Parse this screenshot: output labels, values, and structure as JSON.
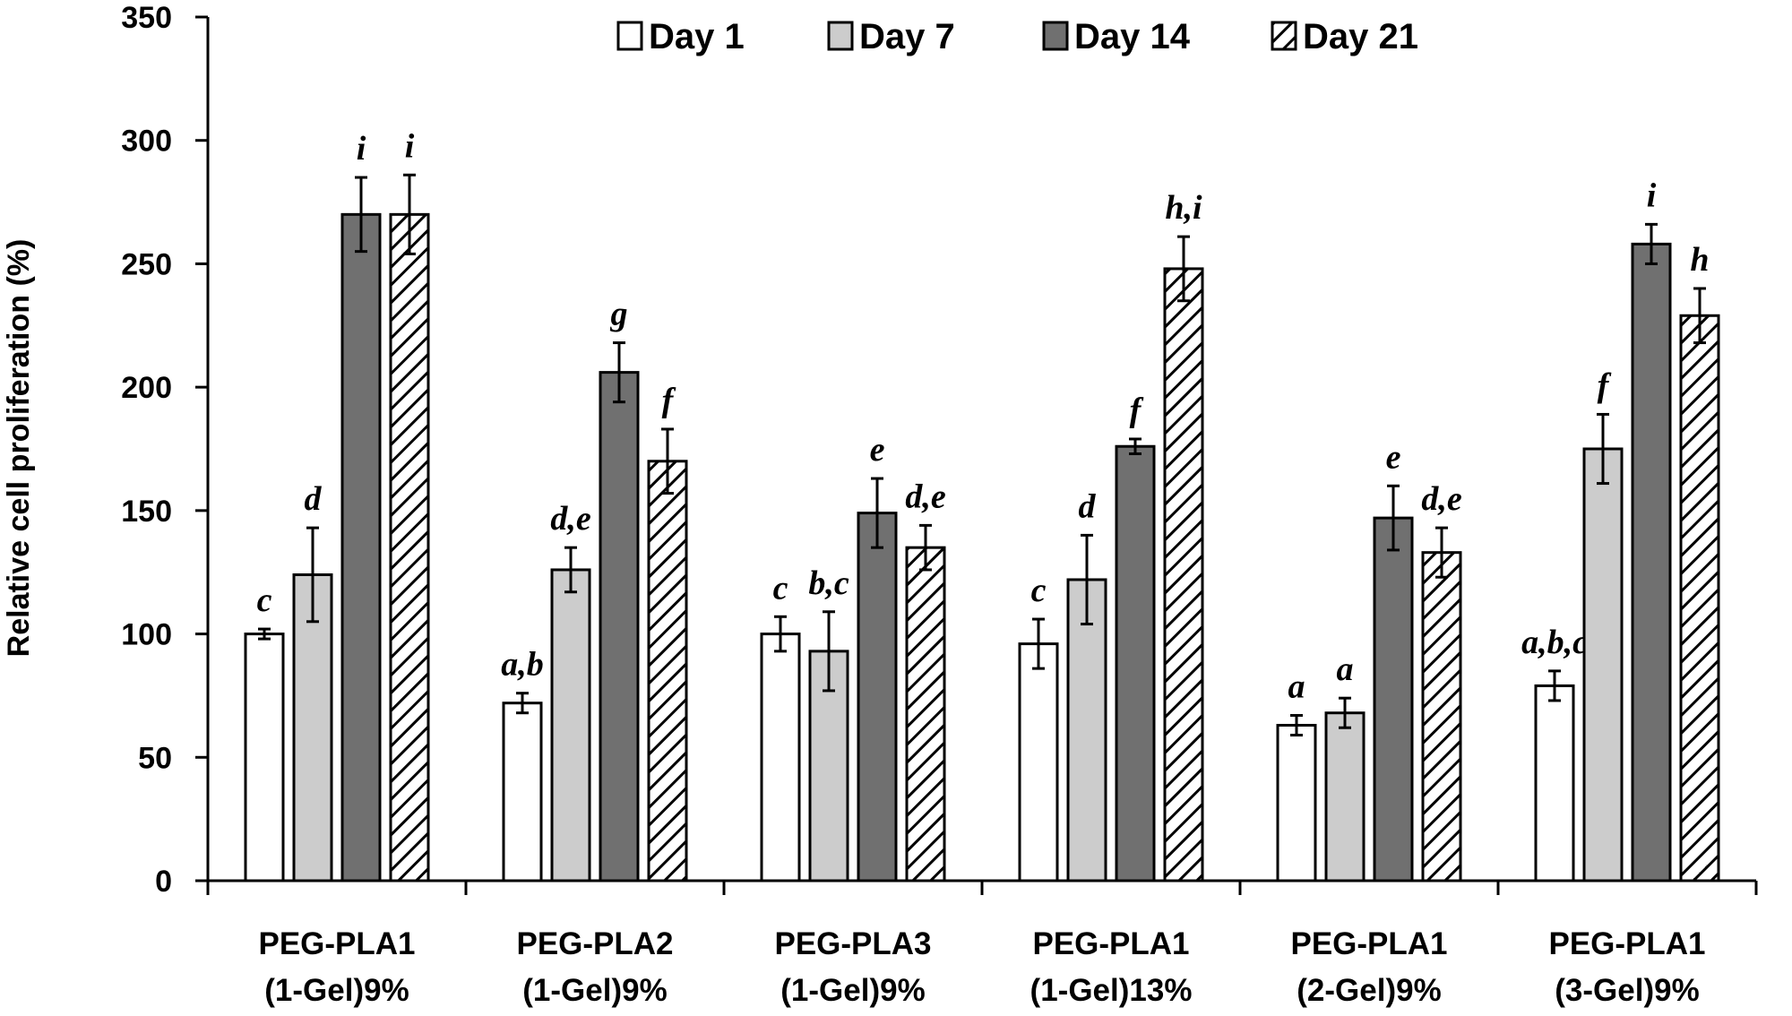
{
  "chart_data": {
    "type": "bar",
    "title": "",
    "xlabel": "",
    "ylabel": "Relative cell proliferation (%)",
    "ylim": [
      0,
      350
    ],
    "yticks": [
      0,
      50,
      100,
      150,
      200,
      250,
      300,
      350
    ],
    "grid": false,
    "legend_position": "top-center",
    "categories": [
      {
        "line1": "PEG-PLA1",
        "line2": "(1-Gel)9%"
      },
      {
        "line1": "PEG-PLA2",
        "line2": "(1-Gel)9%"
      },
      {
        "line1": "PEG-PLA3",
        "line2": "(1-Gel)9%"
      },
      {
        "line1": "PEG-PLA1",
        "line2": "(1-Gel)13%"
      },
      {
        "line1": "PEG-PLA1",
        "line2": "(2-Gel)9%"
      },
      {
        "line1": "PEG-PLA1",
        "line2": "(3-Gel)9%"
      }
    ],
    "series": [
      {
        "name": "Day 1",
        "fill": "#ffffff",
        "pattern": "solid",
        "values": [
          100,
          72,
          100,
          96,
          63,
          79
        ],
        "errors": [
          2,
          4,
          7,
          10,
          4,
          6
        ],
        "labels": [
          "c",
          "a,b",
          "c",
          "c",
          "a",
          "a,b,c"
        ]
      },
      {
        "name": "Day 7",
        "fill": "#cccccc",
        "pattern": "solid",
        "values": [
          124,
          126,
          93,
          122,
          68,
          175
        ],
        "errors": [
          19,
          9,
          16,
          18,
          6,
          14
        ],
        "labels": [
          "d",
          "d,e",
          "b,c",
          "d",
          "a",
          "f"
        ]
      },
      {
        "name": "Day 14",
        "fill": "#707070",
        "pattern": "solid",
        "values": [
          270,
          206,
          149,
          176,
          147,
          258
        ],
        "errors": [
          15,
          12,
          14,
          3,
          13,
          8
        ],
        "labels": [
          "i",
          "g",
          "e",
          "f",
          "e",
          "i"
        ]
      },
      {
        "name": "Day 21",
        "fill": "#ffffff",
        "pattern": "hatch",
        "values": [
          270,
          170,
          135,
          248,
          133,
          229
        ],
        "errors": [
          16,
          13,
          9,
          13,
          10,
          11
        ],
        "labels": [
          "i",
          "f",
          "d,e",
          "h,i",
          "d,e",
          "h"
        ]
      }
    ]
  }
}
